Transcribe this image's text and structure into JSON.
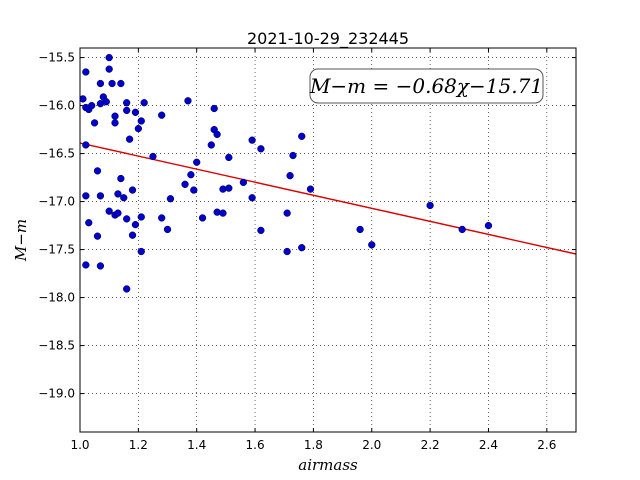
{
  "chart_data": {
    "type": "scatter",
    "title": "2021-10-29_232445",
    "xlabel": "airmass",
    "ylabel": "M−m",
    "xlim": [
      1.0,
      2.7
    ],
    "ylim": [
      -19.4,
      -15.4
    ],
    "y_inverted": true,
    "grid": true,
    "x_ticks": [
      "1.0",
      "1.2",
      "1.4",
      "1.6",
      "1.8",
      "2.0",
      "2.2",
      "2.4",
      "2.6"
    ],
    "y_ticks": [
      "−15.5",
      "−16.0",
      "−16.5",
      "−17.0",
      "−17.5",
      "−18.0",
      "−18.5",
      "−19.0"
    ],
    "annotation": "M−m = −0.68χ−15.71",
    "fit": {
      "slope": -0.68,
      "intercept": -15.71,
      "color": "#dd0000"
    },
    "marker_color": "#0000cc",
    "series": [
      {
        "x": [
          1.01,
          1.02,
          1.02,
          1.03,
          1.04,
          1.05,
          1.02,
          1.06,
          1.07,
          1.07,
          1.08,
          1.09,
          1.1,
          1.1,
          1.11,
          1.12,
          1.12,
          1.14,
          1.16,
          1.16,
          1.17,
          1.19,
          1.2,
          1.21,
          1.22,
          1.28,
          1.25,
          1.02,
          1.07,
          1.03,
          1.06,
          1.14,
          1.18,
          1.13,
          1.15,
          1.16,
          1.1,
          1.12,
          1.13,
          1.19,
          1.21,
          1.28,
          1.31,
          1.3,
          1.18,
          1.21,
          1.02,
          1.07,
          1.16,
          1.37,
          1.38,
          1.4,
          1.36,
          1.39,
          1.45,
          1.46,
          1.46,
          1.47,
          1.51,
          1.49,
          1.47,
          1.49,
          1.51,
          1.42,
          1.56,
          1.59,
          1.59,
          1.62,
          1.62,
          1.73,
          1.76,
          1.72,
          1.79,
          1.71,
          1.71,
          1.76,
          1.96,
          2.0,
          2.2,
          2.31,
          2.4
        ],
        "y": [
          -15.93,
          -15.65,
          -16.02,
          -16.04,
          -16.0,
          -16.18,
          -16.41,
          -16.68,
          -15.98,
          -15.77,
          -15.91,
          -15.96,
          -15.5,
          -15.62,
          -15.77,
          -16.11,
          -16.18,
          -15.77,
          -15.97,
          -16.05,
          -16.35,
          -16.07,
          -16.24,
          -16.16,
          -15.97,
          -16.1,
          -16.53,
          -16.94,
          -16.94,
          -17.22,
          -17.36,
          -16.76,
          -16.88,
          -16.92,
          -16.96,
          -17.18,
          -17.1,
          -17.14,
          -17.12,
          -17.24,
          -17.16,
          -17.17,
          -16.97,
          -17.29,
          -17.35,
          -17.52,
          -17.66,
          -17.67,
          -17.91,
          -15.95,
          -16.72,
          -16.59,
          -16.82,
          -16.88,
          -16.41,
          -16.03,
          -16.25,
          -16.3,
          -16.54,
          -16.87,
          -17.11,
          -17.12,
          -16.86,
          -17.17,
          -16.8,
          -16.36,
          -16.96,
          -16.45,
          -17.3,
          -16.52,
          -16.32,
          -16.73,
          -16.87,
          -17.12,
          -17.52,
          -17.48,
          -17.29,
          -17.45,
          -17.04,
          -17.29,
          -17.25
        ]
      }
    ]
  }
}
